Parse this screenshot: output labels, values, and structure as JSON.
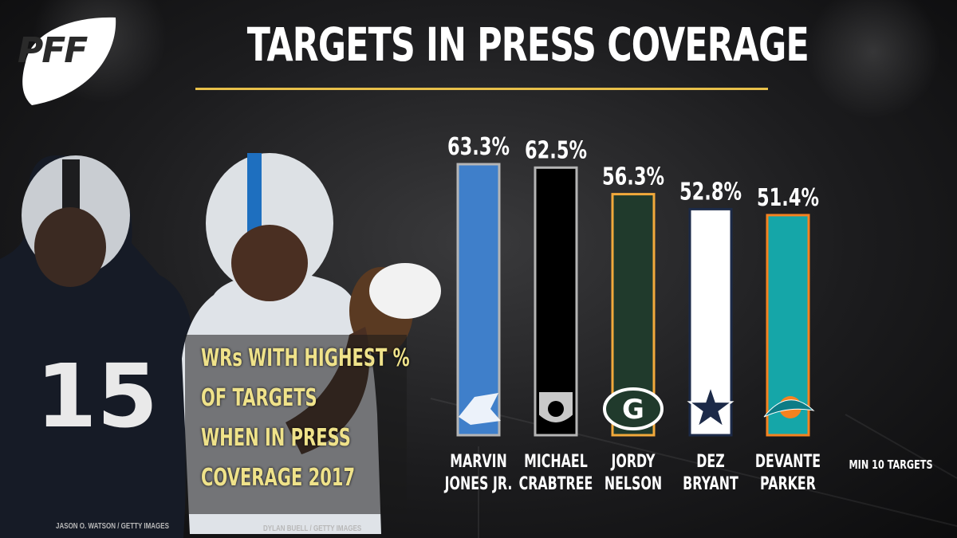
{
  "brand": {
    "logo_text": "PFF"
  },
  "title": "TARGETS IN PRESS COVERAGE",
  "subtitle_lines": [
    "WRs WITH HIGHEST %",
    "OF TARGETS",
    "WHEN  IN PRESS",
    "COVERAGE 2017"
  ],
  "credits": [
    "JASON O. WATSON / GETTY IMAGES",
    "DYLAN BUELL / GETTY IMAGES"
  ],
  "colors": {
    "accent": "#e8c04a",
    "subtitle": "#efe28a"
  },
  "chart_data": {
    "type": "bar",
    "categories": [
      "MARVIN JONES JR.",
      "MICHAEL CRABTREE",
      "JORDY NELSON",
      "DEZ BRYANT",
      "DEVANTE PARKER"
    ],
    "name_lines": [
      [
        "MARVIN",
        "JONES JR."
      ],
      [
        "MICHAEL",
        "CRABTREE"
      ],
      [
        "JORDY",
        "NELSON"
      ],
      [
        "DEZ",
        "BRYANT"
      ],
      [
        "DEVANTE",
        "PARKER"
      ]
    ],
    "values": [
      63.3,
      62.5,
      56.3,
      52.8,
      51.4
    ],
    "value_labels": [
      "63.3%",
      "62.5%",
      "56.3%",
      "52.8%",
      "51.4%"
    ],
    "bar_colors": [
      "#3f7fca",
      "#000000",
      "#203a2c",
      "#ffffff",
      "#15a6a8"
    ],
    "bar_borders": [
      "#b5b5b5",
      "#b5b5b5",
      "#f2a93b",
      "#1c2a48",
      "#f58220"
    ],
    "team_icons": [
      "lions-icon",
      "raiders-icon",
      "packers-icon",
      "cowboys-icon",
      "dolphins-icon"
    ],
    "note": "MIN 10 TARGETS"
  }
}
